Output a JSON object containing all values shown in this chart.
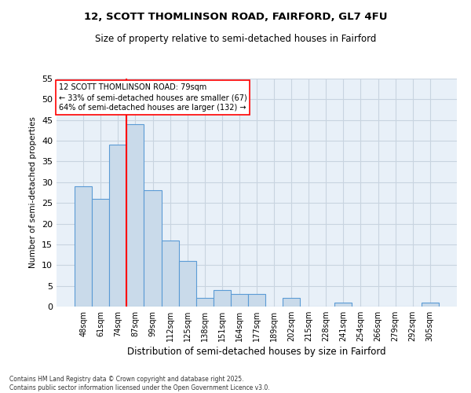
{
  "title1": "12, SCOTT THOMLINSON ROAD, FAIRFORD, GL7 4FU",
  "title2": "Size of property relative to semi-detached houses in Fairford",
  "xlabel": "Distribution of semi-detached houses by size in Fairford",
  "ylabel": "Number of semi-detached properties",
  "categories": [
    "48sqm",
    "61sqm",
    "74sqm",
    "87sqm",
    "99sqm",
    "112sqm",
    "125sqm",
    "138sqm",
    "151sqm",
    "164sqm",
    "177sqm",
    "189sqm",
    "202sqm",
    "215sqm",
    "228sqm",
    "241sqm",
    "254sqm",
    "266sqm",
    "279sqm",
    "292sqm",
    "305sqm"
  ],
  "values": [
    29,
    26,
    39,
    44,
    28,
    16,
    11,
    2,
    4,
    3,
    3,
    0,
    2,
    0,
    0,
    1,
    0,
    0,
    0,
    0,
    1
  ],
  "bar_color": "#c9daea",
  "bar_edge_color": "#5b9bd5",
  "grid_color": "#c8d4e0",
  "bg_color": "#e8f0f8",
  "red_line_x": 2.5,
  "annotation_text": "12 SCOTT THOMLINSON ROAD: 79sqm\n← 33% of semi-detached houses are smaller (67)\n64% of semi-detached houses are larger (132) →",
  "footnote": "Contains HM Land Registry data © Crown copyright and database right 2025.\nContains public sector information licensed under the Open Government Licence v3.0.",
  "ylim": [
    0,
    55
  ],
  "yticks": [
    0,
    5,
    10,
    15,
    20,
    25,
    30,
    35,
    40,
    45,
    50,
    55
  ]
}
